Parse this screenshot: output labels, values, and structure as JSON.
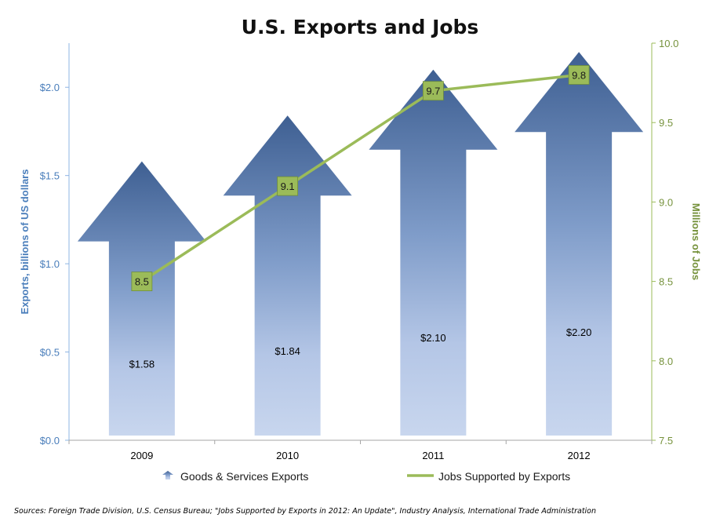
{
  "chart_data": {
    "type": "bar",
    "title": "U.S. Exports and Jobs",
    "categories": [
      "2009",
      "2010",
      "2011",
      "2012"
    ],
    "series": [
      {
        "name": "Goods & Services Exports",
        "type": "bar",
        "axis": "left",
        "values": [
          1.58,
          1.84,
          2.1,
          2.2
        ],
        "labels": [
          "$1.58",
          "$1.84",
          "$2.10",
          "$2.20"
        ],
        "color": "#4a6fa5"
      },
      {
        "name": "Jobs Supported by Exports",
        "type": "line",
        "axis": "right",
        "values": [
          8.5,
          9.1,
          9.7,
          9.8
        ],
        "labels": [
          "8.5",
          "9.1",
          "9.7",
          "9.8"
        ],
        "color": "#9bbb59"
      }
    ],
    "y_left": {
      "label": "Exports, billions of US dollars",
      "ylim": [
        0,
        2.25
      ],
      "ticks": [
        0,
        0.5,
        1.0,
        1.5,
        2.0
      ],
      "tick_labels": [
        "$0.0",
        "$0.5",
        "$1.0",
        "$1.5",
        "$2.0"
      ],
      "color": "#4a7ebb"
    },
    "y_right": {
      "label": "Millions of Jobs",
      "ylim": [
        7.5,
        10.0
      ],
      "ticks": [
        7.5,
        8.0,
        8.5,
        9.0,
        9.5,
        10.0
      ],
      "tick_labels": [
        "7.5",
        "8.0",
        "8.5",
        "9.0",
        "9.5",
        "10.0"
      ],
      "color": "#76923c"
    },
    "grid": false,
    "legend_position": "bottom",
    "source": "Sources: Foreign Trade Division, U.S. Census Bureau; \"Jobs Supported by Exports in 2012: An Update\", Industry Analysis, International Trade Administration"
  }
}
